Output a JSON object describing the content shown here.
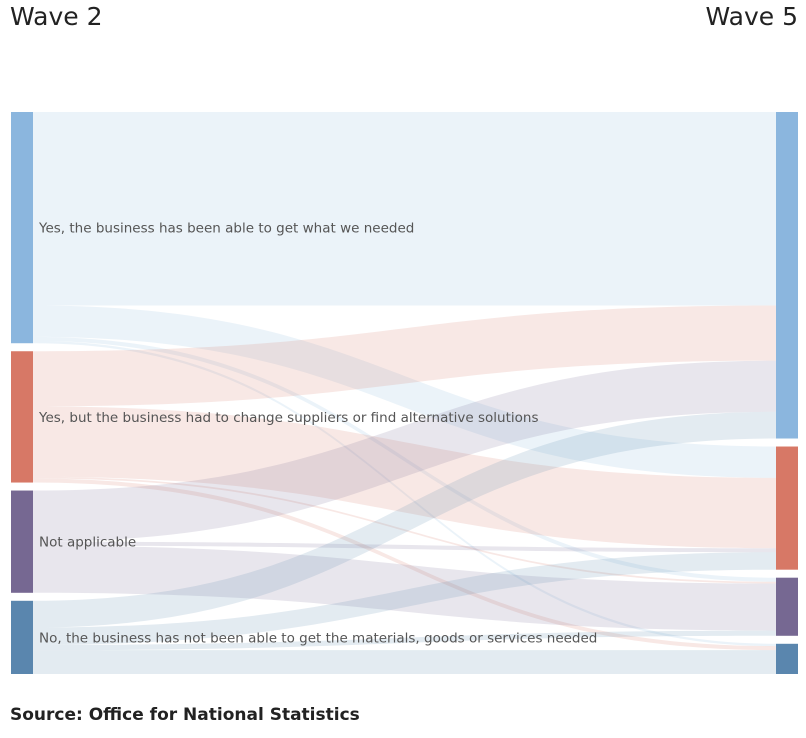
{
  "left_title": "Wave 2",
  "right_title": "Wave 5",
  "source": "Source: Office for National Statistics",
  "chart_data": {
    "type": "sankey",
    "columns": [
      "Wave 2",
      "Wave 5"
    ],
    "nodes": [
      {
        "id": "w2_yes",
        "column": 0,
        "label": "Yes, the business has been able to get what we needed",
        "color": "#8BB6DE"
      },
      {
        "id": "w2_change",
        "column": 0,
        "label": "Yes, but the business had to change suppliers or find alternative solutions",
        "color": "#D77866"
      },
      {
        "id": "w2_na",
        "column": 0,
        "label": "Not applicable",
        "color": "#766892"
      },
      {
        "id": "w2_no",
        "column": 0,
        "label": "No, the business has not been able to get the materials, goods or services needed",
        "color": "#5A86AE"
      },
      {
        "id": "w5_yes",
        "column": 1,
        "label": "",
        "color": "#8BB6DE"
      },
      {
        "id": "w5_change",
        "column": 1,
        "label": "",
        "color": "#D77866"
      },
      {
        "id": "w5_na",
        "column": 1,
        "label": "",
        "color": "#766892"
      },
      {
        "id": "w5_no",
        "column": 1,
        "label": "",
        "color": "#5A86AE"
      }
    ],
    "links": [
      {
        "source": "w2_yes",
        "target": "w5_yes",
        "value": 33.3
      },
      {
        "source": "w2_yes",
        "target": "w5_change",
        "value": 5.4
      },
      {
        "source": "w2_yes",
        "target": "w5_na",
        "value": 0.7
      },
      {
        "source": "w2_yes",
        "target": "w5_no",
        "value": 0.4
      },
      {
        "source": "w2_change",
        "target": "w5_yes",
        "value": 9.5
      },
      {
        "source": "w2_change",
        "target": "w5_change",
        "value": 12.1
      },
      {
        "source": "w2_change",
        "target": "w5_na",
        "value": 0.3
      },
      {
        "source": "w2_change",
        "target": "w5_no",
        "value": 0.7
      },
      {
        "source": "w2_na",
        "target": "w5_yes",
        "value": 8.8
      },
      {
        "source": "w2_na",
        "target": "w5_change",
        "value": 0.7
      },
      {
        "source": "w2_na",
        "target": "w5_na",
        "value": 8.1
      },
      {
        "source": "w2_no",
        "target": "w5_yes",
        "value": 4.6
      },
      {
        "source": "w2_no",
        "target": "w5_change",
        "value": 3.0
      },
      {
        "source": "w2_no",
        "target": "w5_na",
        "value": 0.9
      },
      {
        "source": "w2_no",
        "target": "w5_no",
        "value": 4.1
      }
    ]
  }
}
